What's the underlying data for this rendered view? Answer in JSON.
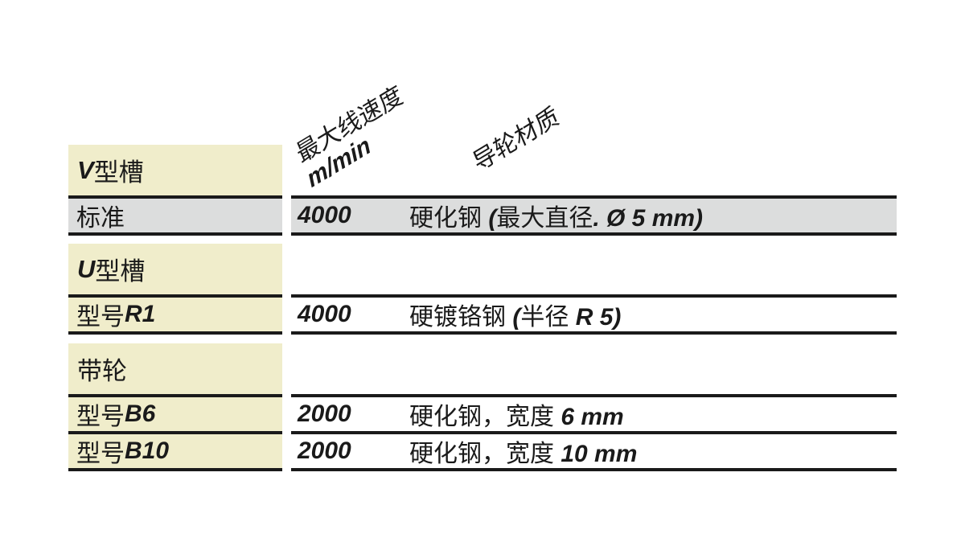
{
  "colors": {
    "background": "#ffffff",
    "section_header_bg": "#f0edcb",
    "highlight_row_bg": "#dcdddd",
    "rule_line": "#1a1a1a",
    "text": "#1a1a1a"
  },
  "columns": {
    "speed": {
      "title_cn": "最大线速度",
      "title_unit": "m/min"
    },
    "material": {
      "title_cn": "导轮材质"
    }
  },
  "sections": [
    {
      "title": {
        "latin": "V",
        "cn": "型槽"
      },
      "rows": [
        {
          "label": {
            "cn": "标准",
            "latin": ""
          },
          "speed": "4000",
          "material": {
            "p1": "硬化钢 ",
            "p2": "(",
            "p3": "最大直径",
            "p4": ". Ø 5 mm)"
          },
          "highlighted": true
        }
      ]
    },
    {
      "title": {
        "latin": "U",
        "cn": "型槽"
      },
      "rows": [
        {
          "label": {
            "cn": "型号 ",
            "latin": "R1"
          },
          "speed": "4000",
          "material": {
            "p1": "硬镀铬钢 ",
            "p2": "(",
            "p3": "半径 ",
            "p4": "R 5)"
          },
          "highlighted": false
        }
      ]
    },
    {
      "title": {
        "latin": "",
        "cn": "带轮"
      },
      "rows": [
        {
          "label": {
            "cn": "型号 ",
            "latin": "B6"
          },
          "speed": "2000",
          "material": {
            "p1": "硬化钢，宽度 ",
            "p2": "6 mm"
          },
          "highlighted": false
        },
        {
          "label": {
            "cn": "型号 ",
            "latin": "B10"
          },
          "speed": "2000",
          "material": {
            "p1": "硬化钢，宽度 ",
            "p2": "10 mm"
          },
          "highlighted": false
        }
      ]
    }
  ]
}
